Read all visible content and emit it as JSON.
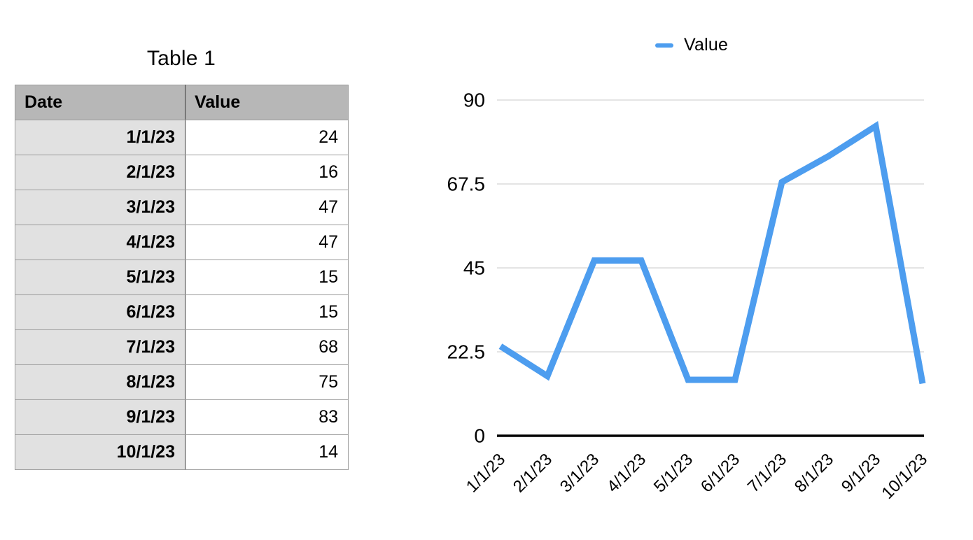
{
  "table": {
    "title": "Table 1",
    "columns": [
      "Date",
      "Value"
    ],
    "rows": [
      {
        "date": "1/1/23",
        "value": "24"
      },
      {
        "date": "2/1/23",
        "value": "16"
      },
      {
        "date": "3/1/23",
        "value": "47"
      },
      {
        "date": "4/1/23",
        "value": "47"
      },
      {
        "date": "5/1/23",
        "value": "15"
      },
      {
        "date": "6/1/23",
        "value": "15"
      },
      {
        "date": "7/1/23",
        "value": "68"
      },
      {
        "date": "8/1/23",
        "value": "75"
      },
      {
        "date": "9/1/23",
        "value": "83"
      },
      {
        "date": "10/1/23",
        "value": "14"
      }
    ],
    "colors": {
      "header_bg": "#b7b7b7",
      "row_header_bg": "#e1e1e1",
      "body_bg": "#ffffff"
    }
  },
  "chart": {
    "legend": {
      "label": "Value",
      "color": "#4d9def"
    }
  },
  "chart_data": {
    "type": "line",
    "title": "",
    "categories": [
      "1/1/23",
      "2/1/23",
      "3/1/23",
      "4/1/23",
      "5/1/23",
      "6/1/23",
      "7/1/23",
      "8/1/23",
      "9/1/23",
      "10/1/23"
    ],
    "series": [
      {
        "name": "Value",
        "values": [
          24,
          16,
          47,
          47,
          15,
          15,
          68,
          75,
          83,
          14
        ]
      }
    ],
    "xlabel": "",
    "ylabel": "",
    "ylim": [
      0,
      90
    ],
    "yticks": [
      0,
      22.5,
      45,
      67.5,
      90
    ],
    "grid": true,
    "legend_position": "top",
    "line_color": "#4d9def",
    "grid_color": "#c9c9c9",
    "axis_color": "#000000"
  }
}
